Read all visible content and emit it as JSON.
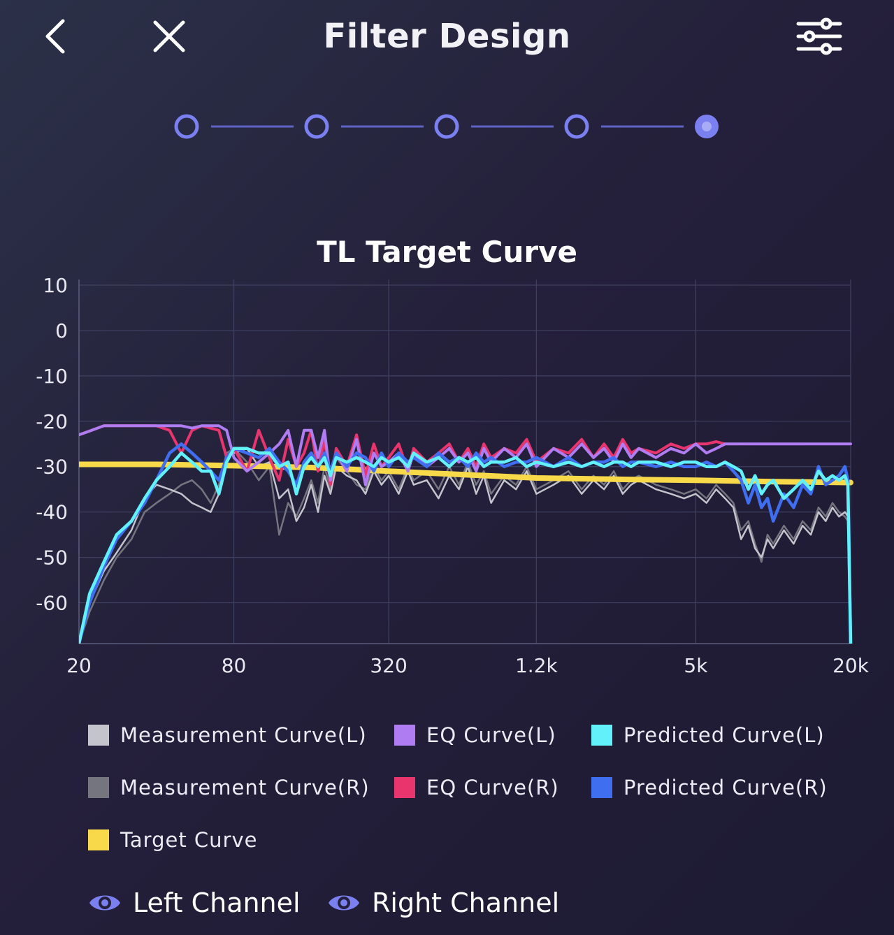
{
  "header": {
    "title": "Filter Design",
    "back_icon": "chevron-left-icon",
    "close_icon": "close-icon",
    "settings_icon": "sliders-icon"
  },
  "stepper": {
    "total_steps": 5,
    "current_step": 5
  },
  "colors": {
    "accent": "#7b80f0",
    "measurement_l": "#c4c4cc",
    "measurement_r": "#75757f",
    "eq_l": "#b07cf2",
    "eq_r": "#e8356e",
    "predicted_l": "#62f0fb",
    "predicted_r": "#3f6ef0",
    "target": "#f7d94a"
  },
  "chart_data": {
    "type": "line",
    "title": "TL Target Curve",
    "x_scale": "log",
    "x_ticks": [
      {
        "value": 20,
        "label": "20"
      },
      {
        "value": 80,
        "label": "80"
      },
      {
        "value": 320,
        "label": "320"
      },
      {
        "value": 1200,
        "label": "1.2k"
      },
      {
        "value": 5000,
        "label": "5k"
      },
      {
        "value": 20000,
        "label": "20k"
      }
    ],
    "y_ticks": [
      10,
      0,
      -10,
      -20,
      -30,
      -40,
      -50,
      -60
    ],
    "xlim": [
      20,
      20000
    ],
    "ylim": [
      -69,
      10
    ],
    "grid": true,
    "legend": "bottom",
    "series": [
      {
        "name": "Measurement Curve(L)",
        "color": "#c4c4cc",
        "x": [
          20,
          22,
          25,
          28,
          32,
          36,
          40,
          45,
          50,
          55,
          60,
          65,
          70,
          75,
          80,
          90,
          100,
          110,
          120,
          130,
          140,
          150,
          160,
          170,
          180,
          190,
          200,
          220,
          240,
          260,
          280,
          300,
          320,
          350,
          380,
          400,
          450,
          500,
          550,
          600,
          650,
          700,
          750,
          800,
          900,
          1000,
          1100,
          1200,
          1400,
          1600,
          1800,
          2000,
          2200,
          2400,
          2600,
          2800,
          3000,
          3500,
          4000,
          4500,
          5000,
          5500,
          6000,
          6500,
          7000,
          7500,
          8000,
          8500,
          9000,
          9500,
          10000,
          11000,
          12000,
          13000,
          14000,
          15000,
          16000,
          17000,
          18000,
          19000,
          19500,
          20000
        ],
        "y": [
          -69,
          -60,
          -53,
          -49,
          -44,
          -37,
          -34,
          -35,
          -36,
          -38,
          -39,
          -40,
          -36,
          -28,
          -27,
          -26,
          -30,
          -29,
          -37,
          -35,
          -42,
          -39,
          -34,
          -40,
          -32,
          -36,
          -30,
          -32,
          -33,
          -36,
          -31,
          -34,
          -32,
          -36,
          -31,
          -34,
          -33,
          -37,
          -32,
          -35,
          -30,
          -36,
          -32,
          -38,
          -33,
          -35,
          -31,
          -36,
          -34,
          -32,
          -36,
          -33,
          -35,
          -32,
          -36,
          -34,
          -33,
          -35,
          -36,
          -37,
          -36,
          -38,
          -35,
          -37,
          -39,
          -46,
          -43,
          -48,
          -50,
          -46,
          -48,
          -44,
          -47,
          -43,
          -45,
          -40,
          -42,
          -39,
          -41,
          -40,
          -41,
          -69
        ]
      },
      {
        "name": "Measurement Curve(R)",
        "color": "#75757f",
        "x": [
          20,
          22,
          25,
          28,
          32,
          36,
          40,
          45,
          50,
          55,
          60,
          65,
          70,
          75,
          80,
          90,
          100,
          110,
          120,
          130,
          140,
          150,
          160,
          170,
          180,
          190,
          200,
          220,
          240,
          260,
          280,
          300,
          320,
          350,
          380,
          400,
          450,
          500,
          550,
          600,
          650,
          700,
          750,
          800,
          900,
          1000,
          1100,
          1200,
          1400,
          1600,
          1800,
          2000,
          2200,
          2400,
          2600,
          2800,
          3000,
          3500,
          4000,
          4500,
          5000,
          5500,
          6000,
          6500,
          7000,
          7500,
          8000,
          8500,
          9000,
          9500,
          10000,
          11000,
          12000,
          13000,
          14000,
          15000,
          16000,
          17000,
          18000,
          19000,
          19500,
          20000
        ],
        "y": [
          -69,
          -62,
          -55,
          -50,
          -46,
          -40,
          -38,
          -36,
          -34,
          -33,
          -35,
          -38,
          -34,
          -27,
          -26,
          -29,
          -33,
          -30,
          -45,
          -38,
          -41,
          -37,
          -33,
          -38,
          -30,
          -35,
          -28,
          -31,
          -34,
          -35,
          -30,
          -33,
          -31,
          -35,
          -30,
          -33,
          -31,
          -35,
          -30,
          -34,
          -29,
          -34,
          -31,
          -36,
          -32,
          -34,
          -30,
          -35,
          -33,
          -31,
          -35,
          -32,
          -34,
          -31,
          -35,
          -33,
          -32,
          -34,
          -35,
          -36,
          -35,
          -37,
          -34,
          -36,
          -38,
          -44,
          -42,
          -47,
          -51,
          -45,
          -47,
          -43,
          -46,
          -42,
          -44,
          -39,
          -41,
          -38,
          -40,
          -41,
          -42,
          -69
        ]
      },
      {
        "name": "EQ Curve(L)",
        "color": "#b07cf2",
        "x": [
          20,
          25,
          30,
          40,
          50,
          55,
          60,
          70,
          75,
          80,
          90,
          100,
          110,
          120,
          130,
          140,
          150,
          160,
          170,
          180,
          190,
          200,
          220,
          240,
          260,
          280,
          300,
          320,
          350,
          380,
          400,
          450,
          500,
          550,
          600,
          650,
          700,
          750,
          800,
          900,
          1000,
          1100,
          1200,
          1400,
          1600,
          1800,
          2000,
          2200,
          2400,
          2600,
          2800,
          3000,
          3500,
          4000,
          4500,
          5000,
          5500,
          6000,
          6500,
          7000,
          8000,
          10000,
          15000,
          20000
        ],
        "y": [
          -23,
          -21,
          -21,
          -21,
          -21,
          -21.5,
          -21,
          -21,
          -22,
          -28,
          -31,
          -29,
          -27,
          -25,
          -22,
          -30,
          -22,
          -22,
          -28,
          -22,
          -33,
          -27,
          -31,
          -24,
          -34,
          -27,
          -30,
          -29,
          -27,
          -31,
          -27,
          -30,
          -28,
          -26,
          -29,
          -27,
          -31,
          -26,
          -29,
          -26,
          -28,
          -25,
          -30,
          -26,
          -28,
          -25,
          -28,
          -26,
          -29,
          -25,
          -28,
          -26,
          -28,
          -26,
          -27,
          -25,
          -27,
          -26,
          -25,
          -25,
          -25,
          -25,
          -25,
          -25
        ]
      },
      {
        "name": "EQ Curve(R)",
        "color": "#e8356e",
        "x": [
          20,
          25,
          30,
          40,
          45,
          50,
          55,
          60,
          70,
          75,
          80,
          90,
          100,
          110,
          120,
          130,
          140,
          150,
          160,
          170,
          180,
          190,
          200,
          220,
          240,
          260,
          280,
          300,
          320,
          350,
          380,
          400,
          450,
          500,
          550,
          600,
          650,
          700,
          750,
          800,
          900,
          1000,
          1100,
          1200,
          1400,
          1600,
          1800,
          2000,
          2200,
          2400,
          2600,
          2800,
          3000,
          3500,
          4000,
          4500,
          5000,
          5500,
          6000,
          6500
        ],
        "y": [
          -23,
          -21,
          -21,
          -21,
          -22,
          -27,
          -22,
          -21,
          -22,
          -28,
          -26,
          -31,
          -22,
          -28,
          -33,
          -24,
          -30,
          -27,
          -22,
          -31,
          -24,
          -34,
          -26,
          -30,
          -23,
          -32,
          -25,
          -30,
          -28,
          -25,
          -31,
          -26,
          -29,
          -27,
          -25,
          -29,
          -26,
          -30,
          -25,
          -28,
          -26,
          -27,
          -24,
          -29,
          -26,
          -27,
          -24,
          -28,
          -25,
          -28,
          -24,
          -27,
          -26,
          -27,
          -25,
          -26,
          -25,
          -25,
          -24.5,
          -25
        ]
      },
      {
        "name": "Predicted Curve(L)",
        "color": "#62f0fb",
        "x": [
          20,
          22,
          25,
          28,
          32,
          36,
          40,
          45,
          50,
          55,
          60,
          65,
          70,
          75,
          80,
          90,
          100,
          110,
          120,
          130,
          140,
          150,
          160,
          170,
          180,
          190,
          200,
          220,
          240,
          260,
          280,
          300,
          320,
          350,
          380,
          400,
          450,
          500,
          550,
          600,
          650,
          700,
          750,
          800,
          900,
          1000,
          1100,
          1200,
          1400,
          1600,
          1800,
          2000,
          2200,
          2400,
          2600,
          2800,
          3000,
          3500,
          4000,
          4500,
          5000,
          5500,
          6000,
          6500,
          7000,
          7500,
          8000,
          8500,
          9000,
          9500,
          10000,
          11000,
          12000,
          13000,
          14000,
          15000,
          16000,
          17000,
          18000,
          19000,
          19500,
          20000
        ],
        "y": [
          -69,
          -58,
          -51,
          -45,
          -42,
          -37,
          -33,
          -30,
          -27,
          -29,
          -31,
          -31,
          -36,
          -29,
          -26,
          -26,
          -27,
          -27,
          -30,
          -29,
          -36,
          -30,
          -28,
          -30,
          -28,
          -32,
          -28,
          -29,
          -28,
          -29,
          -30,
          -28,
          -29,
          -28,
          -30,
          -27,
          -29,
          -28,
          -30,
          -28,
          -29,
          -28,
          -30,
          -29,
          -29,
          -28,
          -30,
          -29,
          -30,
          -29,
          -30,
          -29,
          -30,
          -29,
          -29,
          -30,
          -29,
          -29,
          -30,
          -29,
          -29,
          -30,
          -30,
          -29,
          -30,
          -31,
          -35,
          -32,
          -36,
          -34,
          -33,
          -37,
          -35,
          -33,
          -35,
          -31,
          -33,
          -32,
          -33,
          -32,
          -34,
          -69
        ]
      },
      {
        "name": "Predicted Curve(R)",
        "color": "#3f6ef0",
        "x": [
          20,
          22,
          25,
          28,
          32,
          36,
          40,
          45,
          50,
          55,
          60,
          65,
          70,
          75,
          80,
          90,
          100,
          110,
          120,
          130,
          140,
          150,
          160,
          170,
          180,
          190,
          200,
          220,
          240,
          260,
          280,
          300,
          320,
          350,
          380,
          400,
          450,
          500,
          550,
          600,
          650,
          700,
          750,
          800,
          900,
          1000,
          1100,
          1200,
          1400,
          1600,
          1800,
          2000,
          2200,
          2400,
          2600,
          2800,
          3000,
          3500,
          4000,
          4500,
          5000,
          5500,
          6000,
          6500,
          7000,
          7500,
          8000,
          8500,
          9000,
          9500,
          10000,
          11000,
          12000,
          13000,
          14000,
          15000,
          16000,
          17000,
          18000,
          19000,
          19500,
          20000
        ],
        "y": [
          -69,
          -60,
          -52,
          -46,
          -42,
          -38,
          -33,
          -27,
          -25,
          -27,
          -29,
          -31,
          -33,
          -28,
          -26,
          -27,
          -28,
          -26,
          -29,
          -31,
          -34,
          -29,
          -27,
          -30,
          -27,
          -31,
          -27,
          -30,
          -27,
          -28,
          -31,
          -27,
          -30,
          -27,
          -29,
          -28,
          -30,
          -27,
          -29,
          -28,
          -30,
          -27,
          -29,
          -28,
          -30,
          -29,
          -29,
          -28,
          -30,
          -28,
          -30,
          -29,
          -29,
          -28,
          -30,
          -29,
          -29,
          -30,
          -29,
          -30,
          -30,
          -29,
          -30,
          -29,
          -31,
          -33,
          -38,
          -34,
          -39,
          -37,
          -42,
          -36,
          -39,
          -34,
          -36,
          -30,
          -34,
          -33,
          -32,
          -30,
          -33,
          -69
        ]
      },
      {
        "name": "Target Curve",
        "color": "#f7d94a",
        "x": [
          20,
          40,
          80,
          160,
          320,
          640,
          1200,
          2500,
          5000,
          10000,
          20000
        ],
        "y": [
          -29.5,
          -29.5,
          -29.8,
          -30.2,
          -31,
          -31.8,
          -32.5,
          -32.8,
          -33,
          -33.3,
          -33.5
        ]
      }
    ]
  },
  "channels": {
    "left_label": "Left Channel",
    "right_label": "Right Channel"
  }
}
